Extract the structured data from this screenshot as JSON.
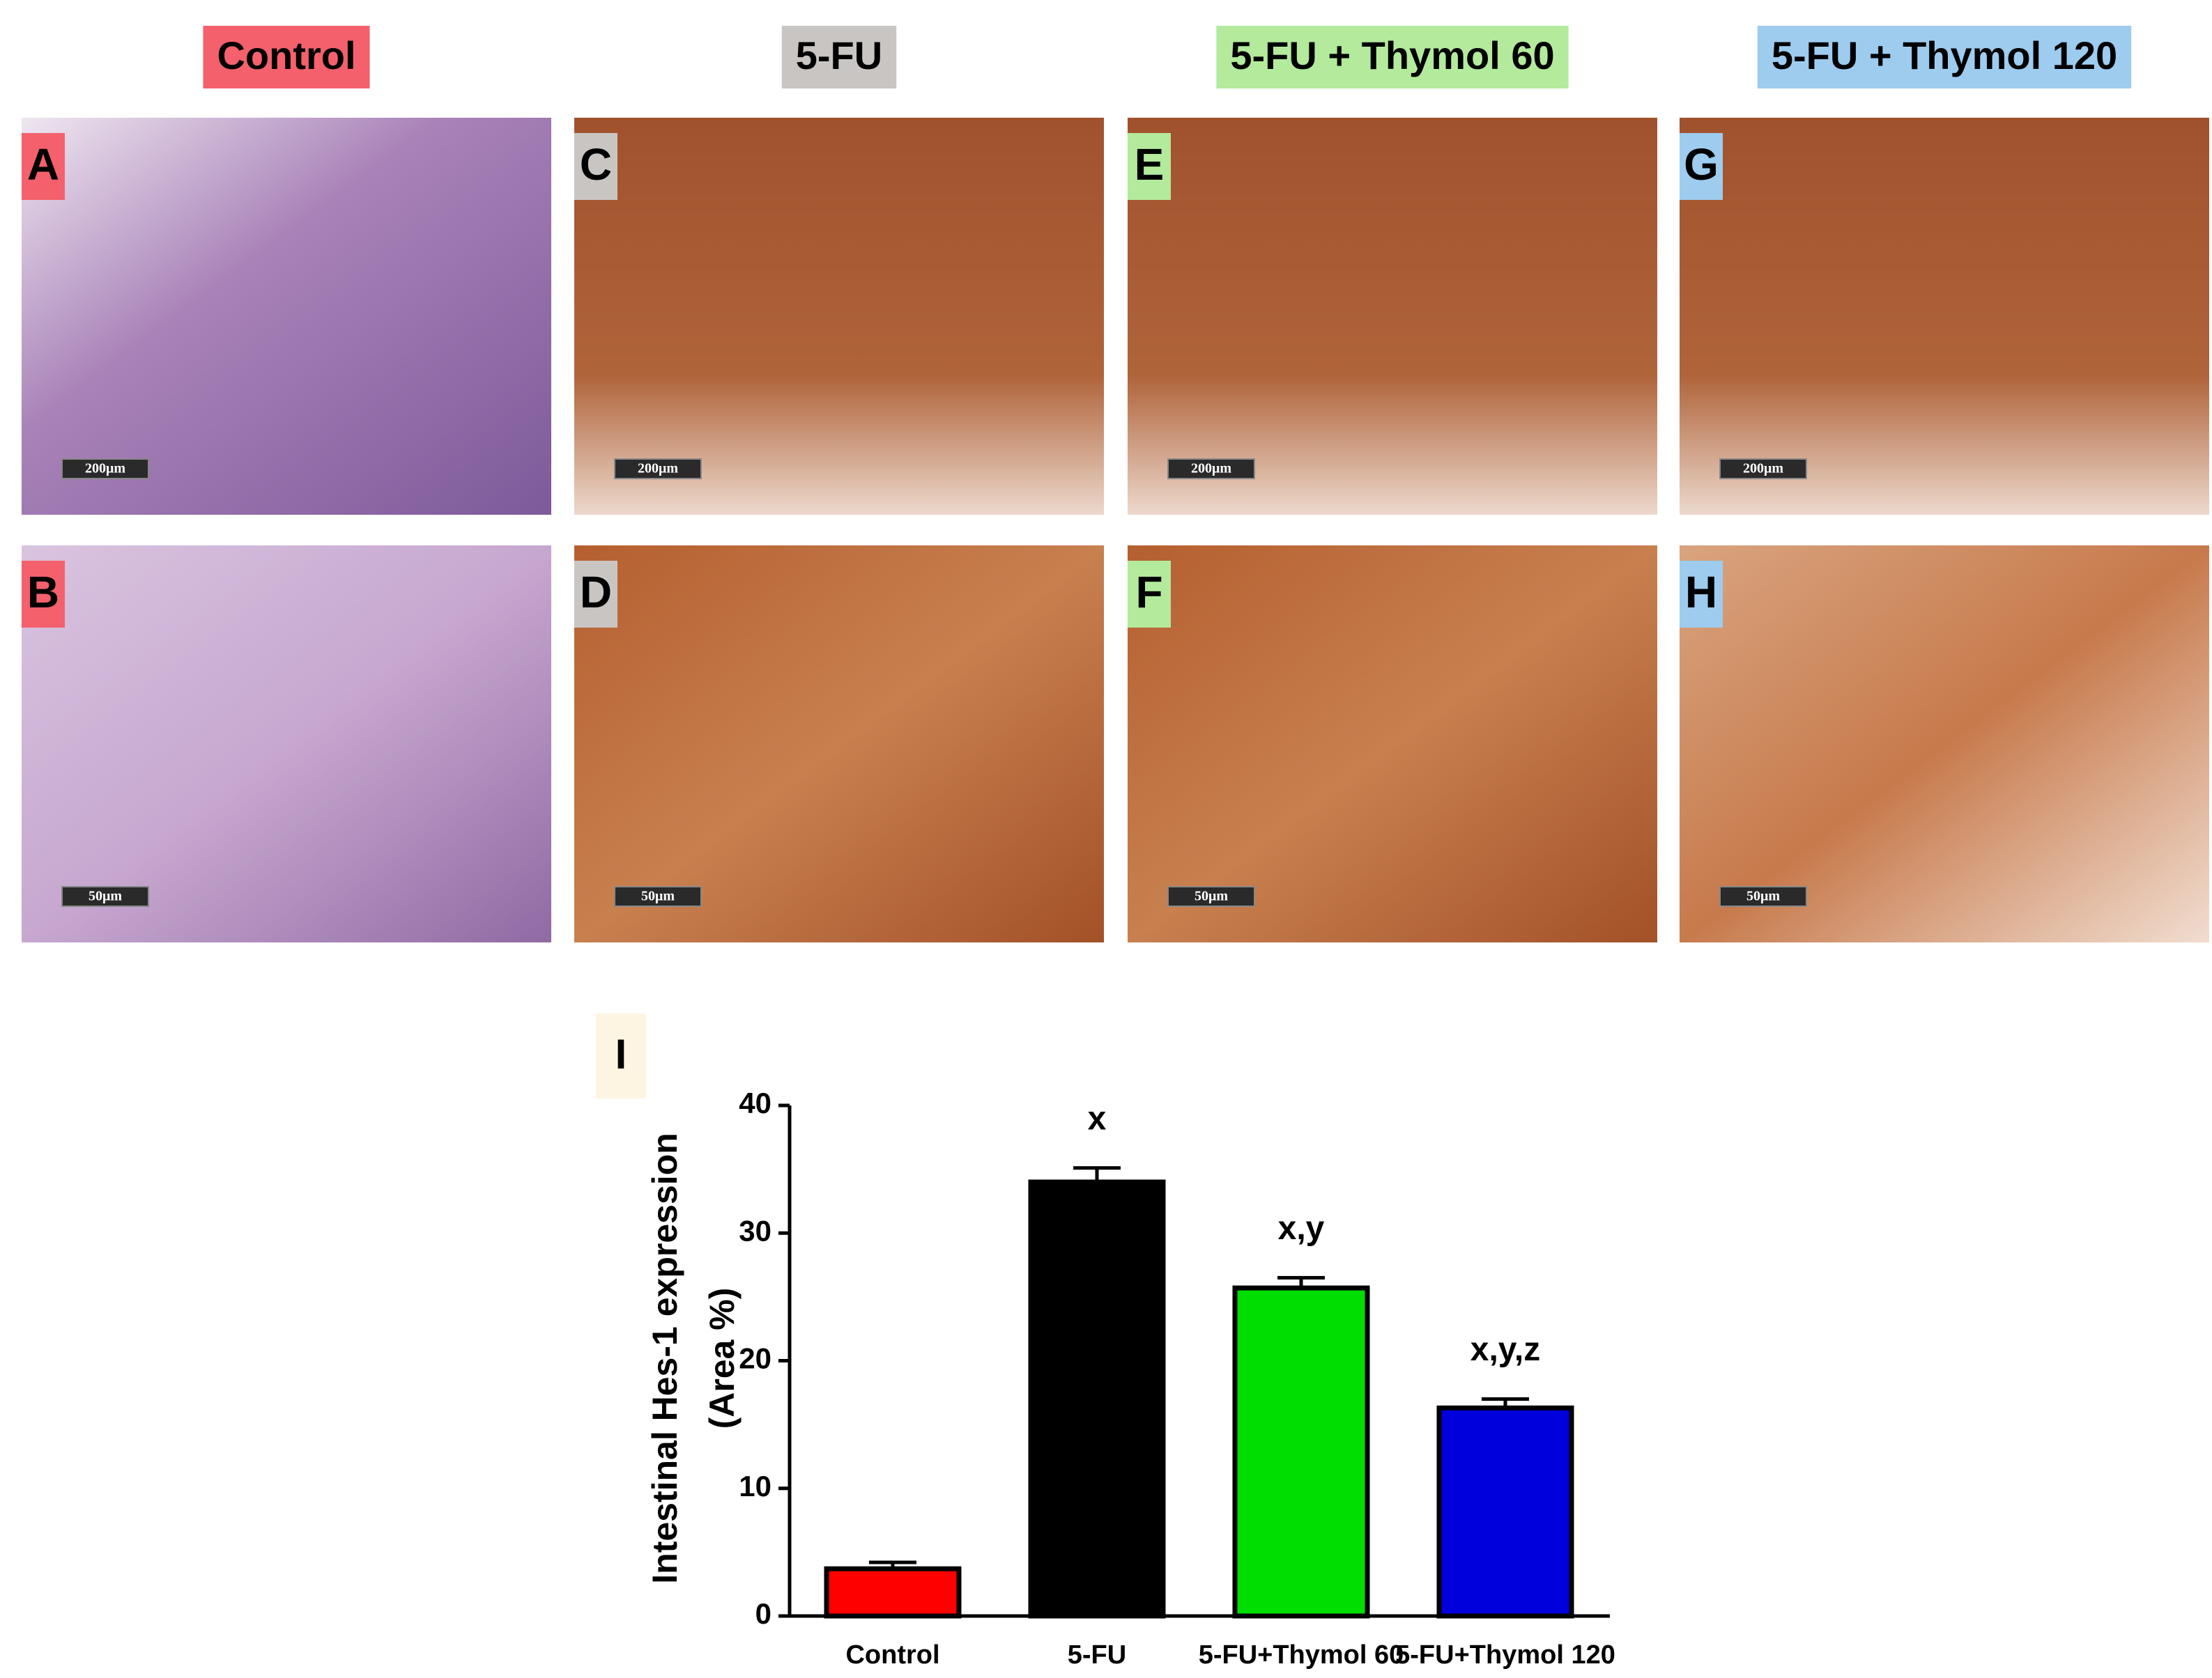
{
  "groups": [
    {
      "title": "Control",
      "color": "#f4606c",
      "panels": [
        {
          "label": "A",
          "scale": "200μm"
        },
        {
          "label": "B",
          "scale": "50μm"
        }
      ]
    },
    {
      "title": "5-FU",
      "color": "#c9c5c2",
      "panels": [
        {
          "label": "C",
          "scale": "200μm"
        },
        {
          "label": "D",
          "scale": "50μm"
        }
      ]
    },
    {
      "title": "5-FU + Thymol 60",
      "color": "#b3ea9c",
      "panels": [
        {
          "label": "E",
          "scale": "200μm"
        },
        {
          "label": "F",
          "scale": "50μm"
        }
      ]
    },
    {
      "title": "5-FU + Thymol 120",
      "color": "#9dccef",
      "panels": [
        {
          "label": "G",
          "scale": "200μm"
        },
        {
          "label": "H",
          "scale": "50μm"
        }
      ]
    }
  ],
  "chart_data": {
    "type": "bar",
    "panel_label": "I",
    "y_label": [
      "Intestinal Hes-1 expression",
      "(Area %)"
    ],
    "categories": [
      "Control",
      "5-FU",
      "5-FU+Thymol 60",
      "5-FU+Thymol 120"
    ],
    "values": [
      3.7,
      34,
      25.7,
      16.3
    ],
    "errors": [
      0.5,
      1.1,
      0.8,
      0.7
    ],
    "annotations": [
      null,
      "x",
      "x,y",
      "x,y,z"
    ],
    "colors": [
      "#ff0000",
      "#000000",
      "#00dd00",
      "#0000dd"
    ],
    "ylim": [
      0,
      40
    ],
    "yticks": [
      0,
      10,
      20,
      30,
      40
    ]
  }
}
